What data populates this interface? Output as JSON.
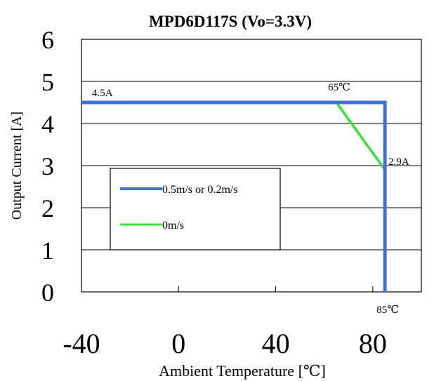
{
  "chart_data": {
    "type": "line",
    "title": "MPD6D117S  (Vo=3.3V)",
    "xlabel": "Ambient Temperature [℃]",
    "ylabel": "Output Current [A]",
    "xlim": [
      -40,
      100
    ],
    "ylim": [
      0,
      6
    ],
    "x_ticks": [
      -40,
      0,
      40,
      80
    ],
    "x_tick_labels": [
      "-40",
      "0",
      "40",
      "80"
    ],
    "y_ticks": [
      0,
      1,
      2,
      3,
      4,
      5,
      6
    ],
    "y_tick_labels": [
      "0",
      "1",
      "2",
      "3",
      "4",
      "5",
      "6"
    ],
    "grid": "horizontal",
    "legend_position": "center-left",
    "series": [
      {
        "name": "0.5m/s or 0.2m/s",
        "color": "#3f6fe0",
        "x": [
          -40,
          65,
          85,
          85
        ],
        "y": [
          4.5,
          4.5,
          4.5,
          0
        ]
      },
      {
        "name": "0m/s",
        "color": "#33e633",
        "x": [
          -40,
          65,
          85,
          85
        ],
        "y": [
          4.5,
          4.5,
          2.9,
          0
        ]
      }
    ],
    "annotations": [
      {
        "text": "4.5A",
        "x": -40,
        "y": 4.5
      },
      {
        "text": "65℃",
        "x": 65,
        "y": 4.5
      },
      {
        "text": "2.9A",
        "x": 85,
        "y": 2.9
      },
      {
        "text": "85℃",
        "x": 85,
        "y": 0
      }
    ]
  }
}
